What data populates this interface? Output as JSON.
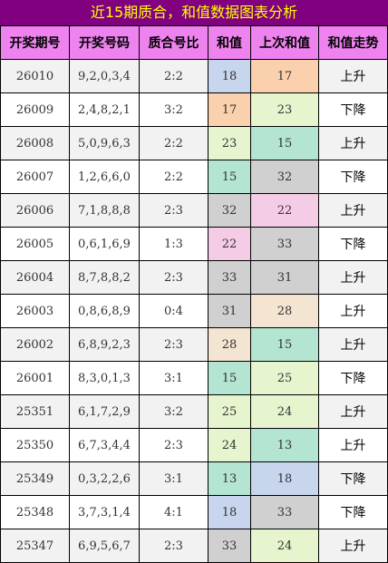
{
  "title": "近15期质合，和值数据图表分析",
  "headers": [
    "开奖期号",
    "开奖号码",
    "质合号比",
    "和值",
    "上次和值",
    "和值走势"
  ],
  "colors": {
    "title_bg": "#800080",
    "title_text": "#ffff00",
    "header_bg": "#ee82ee",
    "value_bg": {
      "13": "#b4e5d2",
      "15": "#b4e5d2",
      "17": "#fbd0ac",
      "18": "#c7d6ec",
      "22": "#f5cce6",
      "23": "#e7f5cf",
      "24": "#e7f5cf",
      "25": "#e7f5cf",
      "28": "#f4e4d2",
      "31": "#d0d0d0",
      "32": "#d0d0d0",
      "33": "#d0d0d0"
    }
  },
  "rows": [
    {
      "period": "26010",
      "numbers": "9,2,0,3,4",
      "ratio": "2:2",
      "sum": "18",
      "prev_sum": "17",
      "trend": "上升"
    },
    {
      "period": "26009",
      "numbers": "2,4,8,2,1",
      "ratio": "3:2",
      "sum": "17",
      "prev_sum": "23",
      "trend": "下降"
    },
    {
      "period": "26008",
      "numbers": "5,0,9,6,3",
      "ratio": "2:2",
      "sum": "23",
      "prev_sum": "15",
      "trend": "上升"
    },
    {
      "period": "26007",
      "numbers": "1,2,6,6,0",
      "ratio": "2:2",
      "sum": "15",
      "prev_sum": "32",
      "trend": "下降"
    },
    {
      "period": "26006",
      "numbers": "7,1,8,8,8",
      "ratio": "2:3",
      "sum": "32",
      "prev_sum": "22",
      "trend": "上升"
    },
    {
      "period": "26005",
      "numbers": "0,6,1,6,9",
      "ratio": "1:3",
      "sum": "22",
      "prev_sum": "33",
      "trend": "下降"
    },
    {
      "period": "26004",
      "numbers": "8,7,8,8,2",
      "ratio": "2:3",
      "sum": "33",
      "prev_sum": "31",
      "trend": "上升"
    },
    {
      "period": "26003",
      "numbers": "0,8,6,8,9",
      "ratio": "0:4",
      "sum": "31",
      "prev_sum": "28",
      "trend": "上升"
    },
    {
      "period": "26002",
      "numbers": "6,8,9,2,3",
      "ratio": "2:3",
      "sum": "28",
      "prev_sum": "15",
      "trend": "上升"
    },
    {
      "period": "26001",
      "numbers": "8,3,0,1,3",
      "ratio": "3:1",
      "sum": "15",
      "prev_sum": "25",
      "trend": "下降"
    },
    {
      "period": "25351",
      "numbers": "6,1,7,2,9",
      "ratio": "3:2",
      "sum": "25",
      "prev_sum": "24",
      "trend": "上升"
    },
    {
      "period": "25350",
      "numbers": "6,7,3,4,4",
      "ratio": "2:3",
      "sum": "24",
      "prev_sum": "13",
      "trend": "上升"
    },
    {
      "period": "25349",
      "numbers": "0,3,2,2,6",
      "ratio": "3:1",
      "sum": "13",
      "prev_sum": "18",
      "trend": "下降"
    },
    {
      "period": "25348",
      "numbers": "3,7,3,1,4",
      "ratio": "4:1",
      "sum": "18",
      "prev_sum": "33",
      "trend": "下降"
    },
    {
      "period": "25347",
      "numbers": "6,9,5,6,7",
      "ratio": "2:3",
      "sum": "33",
      "prev_sum": "24",
      "trend": "上升"
    }
  ]
}
